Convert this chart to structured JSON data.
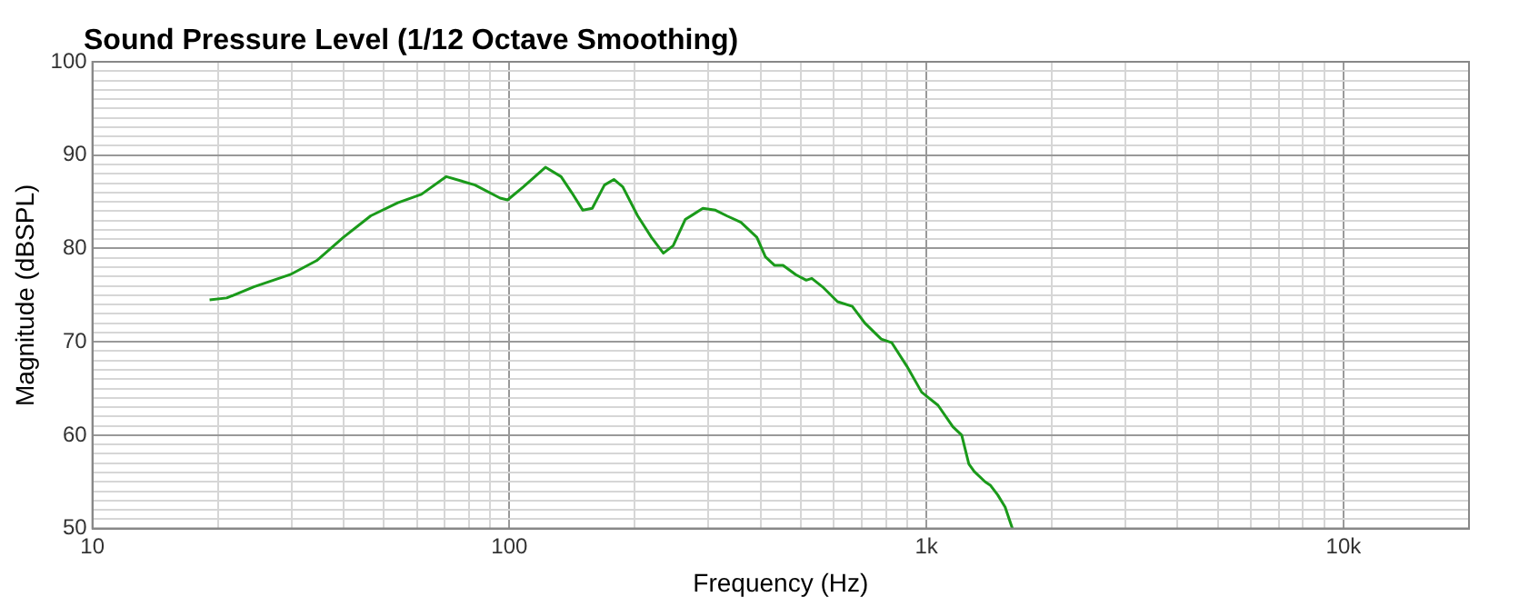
{
  "chart_data": {
    "type": "line",
    "title": "Sound Pressure Level (1/12 Octave Smoothing)",
    "xlabel": "Frequency (Hz)",
    "ylabel": "Magnitude (dBSPL)",
    "log": "x",
    "grid": true,
    "legend": false,
    "marker": "none",
    "line_style": "solid",
    "xlim": [
      10,
      20000
    ],
    "ylim": [
      50,
      100
    ],
    "xticks": [
      10,
      {
        "value": 20,
        "label": null
      },
      {
        "value": 30,
        "label": null
      },
      {
        "value": 40,
        "label": null
      },
      {
        "value": 50,
        "label": null
      },
      {
        "value": 60,
        "label": null
      },
      {
        "value": 70,
        "label": null
      },
      {
        "value": 80,
        "label": null
      },
      {
        "value": 90,
        "label": null
      },
      100,
      {
        "value": 200,
        "label": null
      },
      {
        "value": 300,
        "label": null
      },
      {
        "value": 400,
        "label": null
      },
      {
        "value": 500,
        "label": null
      },
      {
        "value": 600,
        "label": null
      },
      {
        "value": 700,
        "label": null
      },
      {
        "value": 800,
        "label": null
      },
      {
        "value": 900,
        "label": null
      },
      {
        "value": 1000,
        "label": "1k"
      },
      {
        "value": 2000,
        "label": null
      },
      {
        "value": 3000,
        "label": null
      },
      {
        "value": 4000,
        "label": null
      },
      {
        "value": 5000,
        "label": null
      },
      {
        "value": 6000,
        "label": null
      },
      {
        "value": 7000,
        "label": null
      },
      {
        "value": 8000,
        "label": null
      },
      {
        "value": 9000,
        "label": null
      },
      {
        "value": 10000,
        "label": "10k"
      },
      {
        "value": 20000,
        "label": null
      }
    ],
    "yticks": [
      50,
      {
        "value": 51,
        "label": null
      },
      {
        "value": 52,
        "label": null
      },
      {
        "value": 53,
        "label": null
      },
      {
        "value": 54,
        "label": null
      },
      {
        "value": 55,
        "label": null
      },
      {
        "value": 56,
        "label": null
      },
      {
        "value": 57,
        "label": null
      },
      {
        "value": 58,
        "label": null
      },
      {
        "value": 59,
        "label": null
      },
      60,
      {
        "value": 61,
        "label": null
      },
      {
        "value": 62,
        "label": null
      },
      {
        "value": 63,
        "label": null
      },
      {
        "value": 64,
        "label": null
      },
      {
        "value": 65,
        "label": null
      },
      {
        "value": 66,
        "label": null
      },
      {
        "value": 67,
        "label": null
      },
      {
        "value": 68,
        "label": null
      },
      {
        "value": 69,
        "label": null
      },
      70,
      {
        "value": 71,
        "label": null
      },
      {
        "value": 72,
        "label": null
      },
      {
        "value": 73,
        "label": null
      },
      {
        "value": 74,
        "label": null
      },
      {
        "value": 75,
        "label": null
      },
      {
        "value": 76,
        "label": null
      },
      {
        "value": 77,
        "label": null
      },
      {
        "value": 78,
        "label": null
      },
      {
        "value": 79,
        "label": null
      },
      80,
      {
        "value": 81,
        "label": null
      },
      {
        "value": 82,
        "label": null
      },
      {
        "value": 83,
        "label": null
      },
      {
        "value": 84,
        "label": null
      },
      {
        "value": 85,
        "label": null
      },
      {
        "value": 86,
        "label": null
      },
      {
        "value": 87,
        "label": null
      },
      {
        "value": 88,
        "label": null
      },
      {
        "value": 89,
        "label": null
      },
      90,
      {
        "value": 91,
        "label": null
      },
      {
        "value": 92,
        "label": null
      },
      {
        "value": 93,
        "label": null
      },
      {
        "value": 94,
        "label": null
      },
      {
        "value": 95,
        "label": null
      },
      {
        "value": 96,
        "label": null
      },
      {
        "value": 97,
        "label": null
      },
      {
        "value": 98,
        "label": null
      },
      {
        "value": 99,
        "label": null
      },
      100
    ],
    "x": [
      19.1,
      21,
      24.4,
      29.8,
      34.5,
      40,
      46.5,
      54,
      61.5,
      70.6,
      82.7,
      95,
      99,
      108,
      122,
      133,
      141,
      150,
      158,
      169,
      178,
      187,
      203,
      219,
      234,
      247,
      264,
      291,
      312,
      332,
      359,
      392,
      411,
      432,
      453,
      486,
      515,
      531,
      563,
      612,
      664,
      712,
      779,
      826,
      897,
      974,
      1066,
      1157,
      1215,
      1264,
      1302,
      1383,
      1425,
      1482,
      1544,
      1607
    ],
    "series": [
      {
        "color": "#1a9a1a",
        "values": [
          74.5,
          74.7,
          75.9,
          77.2,
          78.7,
          81.2,
          83.5,
          84.9,
          85.8,
          87.7,
          86.8,
          85.4,
          85.2,
          86.6,
          88.7,
          87.7,
          86,
          84.1,
          84.3,
          86.8,
          87.4,
          86.6,
          83.5,
          81.2,
          79.5,
          80.3,
          83.1,
          84.3,
          84.1,
          83.5,
          82.8,
          81.2,
          79.1,
          78.2,
          78.2,
          77.2,
          76.6,
          76.8,
          75.9,
          74.3,
          73.8,
          72,
          70.3,
          69.9,
          67.4,
          64.6,
          63.2,
          60.9,
          60,
          56.9,
          56.1,
          55,
          54.6,
          53.6,
          52.3,
          50
        ]
      }
    ]
  }
}
